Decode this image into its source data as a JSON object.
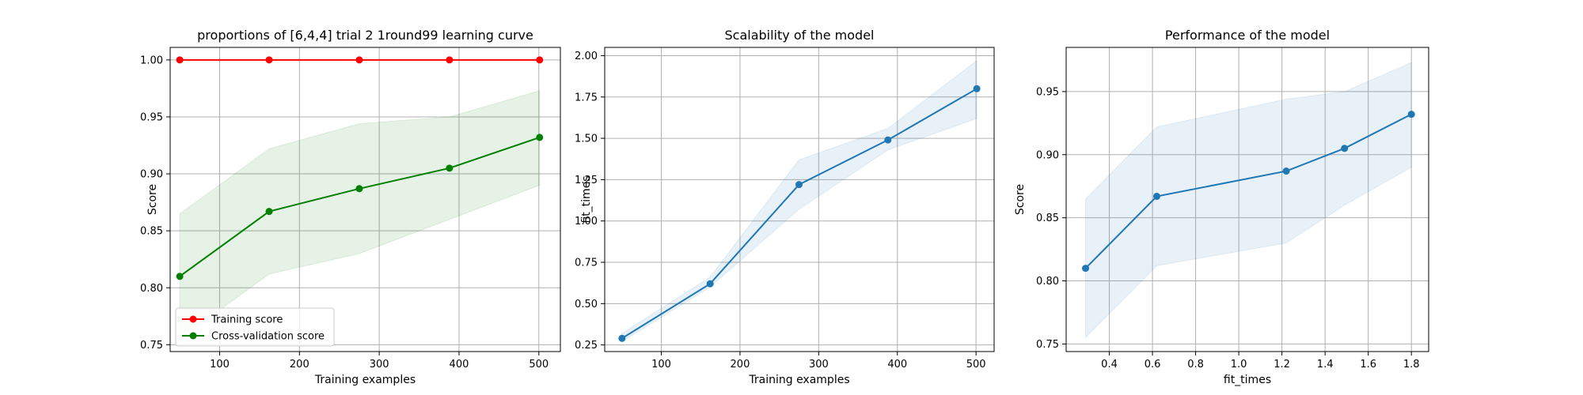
{
  "chart_data": [
    {
      "type": "line",
      "title": "proportions of [6,4,4] trial 2 1round99 learning curve",
      "xlabel": "Training examples",
      "ylabel": "Score",
      "xlim": [
        38,
        527
      ],
      "ylim": [
        0.744,
        1.011
      ],
      "xticks": [
        100,
        200,
        300,
        400,
        500
      ],
      "xtick_labels": [
        "100",
        "200",
        "300",
        "400",
        "500"
      ],
      "yticks": [
        0.75,
        0.8,
        0.85,
        0.9,
        0.95,
        1.0
      ],
      "ytick_labels": [
        "0.75",
        "0.80",
        "0.85",
        "0.90",
        "0.95",
        "1.00"
      ],
      "grid": true,
      "legend_position": "lower-left",
      "x": [
        50,
        162,
        275,
        388,
        501
      ],
      "series": [
        {
          "name": "Training score",
          "color": "#ff0000",
          "values": [
            1.0,
            1.0,
            1.0,
            1.0,
            1.0
          ],
          "band_lower": [
            1.0,
            1.0,
            1.0,
            1.0,
            1.0
          ],
          "band_upper": [
            1.0,
            1.0,
            1.0,
            1.0,
            1.0
          ]
        },
        {
          "name": "Cross-validation score",
          "color": "#008000",
          "values": [
            0.81,
            0.867,
            0.887,
            0.905,
            0.932
          ],
          "band_lower": [
            0.755,
            0.812,
            0.83,
            0.86,
            0.89
          ],
          "band_upper": [
            0.865,
            0.922,
            0.944,
            0.95,
            0.973
          ]
        }
      ]
    },
    {
      "type": "line",
      "title": "Scalability of the model",
      "xlabel": "Training examples",
      "ylabel": "fit_times",
      "xlim": [
        28,
        523
      ],
      "ylim": [
        0.21,
        2.05
      ],
      "xticks": [
        100,
        200,
        300,
        400,
        500
      ],
      "xtick_labels": [
        "100",
        "200",
        "300",
        "400",
        "500"
      ],
      "yticks": [
        0.25,
        0.5,
        0.75,
        1.0,
        1.25,
        1.5,
        1.75,
        2.0
      ],
      "ytick_labels": [
        "0.25",
        "0.50",
        "0.75",
        "1.00",
        "1.25",
        "1.50",
        "1.75",
        "2.00"
      ],
      "grid": true,
      "x": [
        50,
        162,
        275,
        388,
        501
      ],
      "series": [
        {
          "color": "#1f77b4",
          "values": [
            0.29,
            0.62,
            1.22,
            1.49,
            1.8
          ],
          "band_lower": [
            0.27,
            0.6,
            1.07,
            1.43,
            1.62
          ],
          "band_upper": [
            0.32,
            0.66,
            1.37,
            1.56,
            1.97
          ]
        }
      ]
    },
    {
      "type": "line",
      "title": "Performance of the model",
      "xlabel": "fit_times",
      "ylabel": "Score",
      "xlim": [
        0.2,
        1.88
      ],
      "ylim": [
        0.744,
        0.985
      ],
      "xticks": [
        0.4,
        0.6,
        0.8,
        1.0,
        1.2,
        1.4,
        1.6,
        1.8
      ],
      "xtick_labels": [
        "0.4",
        "0.6",
        "0.8",
        "1.0",
        "1.2",
        "1.4",
        "1.6",
        "1.8"
      ],
      "yticks": [
        0.75,
        0.8,
        0.85,
        0.9,
        0.95
      ],
      "ytick_labels": [
        "0.75",
        "0.80",
        "0.85",
        "0.90",
        "0.95"
      ],
      "grid": true,
      "x": [
        0.29,
        0.62,
        1.22,
        1.49,
        1.8
      ],
      "series": [
        {
          "color": "#1f77b4",
          "values": [
            0.81,
            0.867,
            0.887,
            0.905,
            0.932
          ],
          "band_lower": [
            0.755,
            0.812,
            0.83,
            0.86,
            0.89
          ],
          "band_upper": [
            0.865,
            0.922,
            0.944,
            0.95,
            0.973
          ]
        }
      ]
    }
  ]
}
